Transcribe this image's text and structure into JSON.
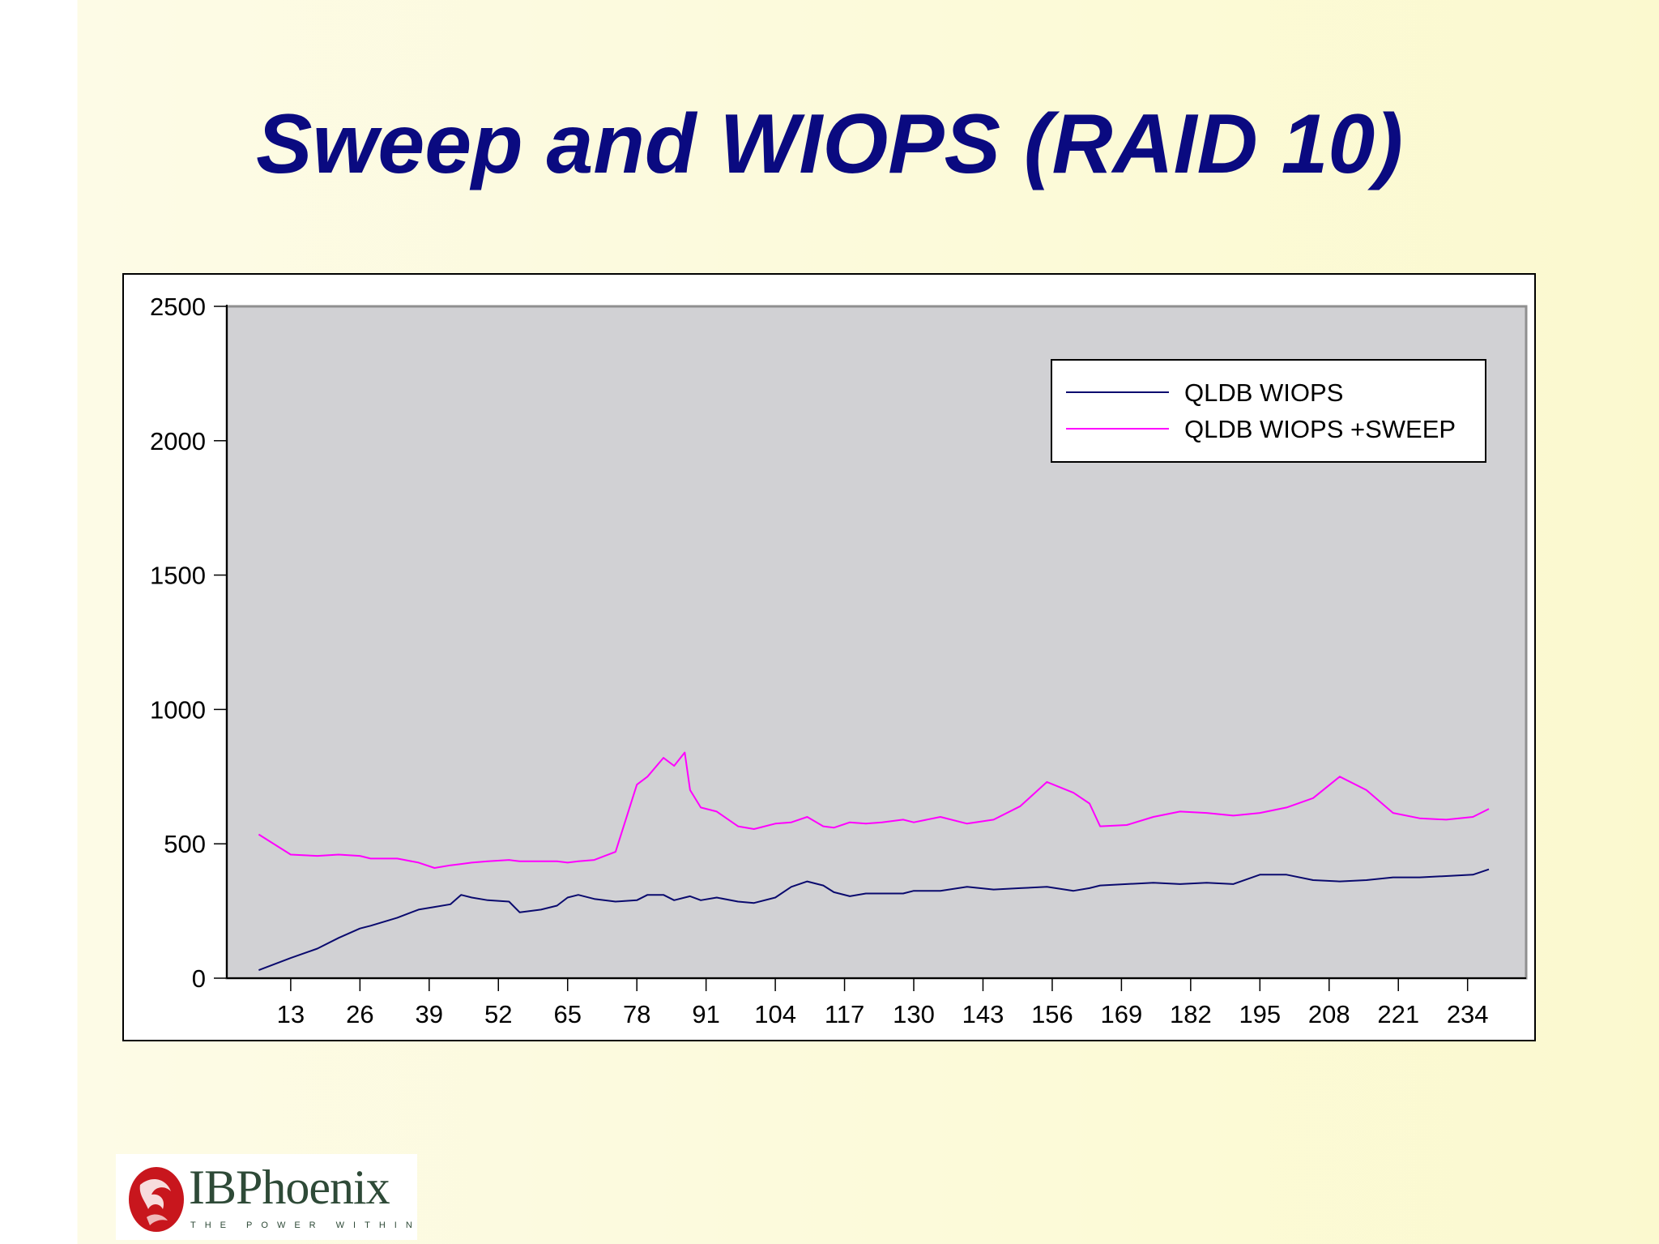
{
  "slide": {
    "title": "Sweep and WIOPS (RAID 10)",
    "logo_name": "IBPhoenix",
    "logo_tagline": "THE POWER WITHIN"
  },
  "colors": {
    "title": "#0a0a80",
    "plot_background": "#d1d1d4",
    "series_qldb_wiops": "#0a0a6e",
    "series_qldb_wiops_sweep": "#ff00ff"
  },
  "chart_data": {
    "type": "line",
    "title": "",
    "xlabel": "",
    "ylabel": "",
    "xlim": [
      1,
      245
    ],
    "ylim": [
      0,
      2500
    ],
    "y_ticks": [
      0,
      500,
      1000,
      1500,
      2000,
      2500
    ],
    "x_ticks": [
      13,
      26,
      39,
      52,
      65,
      78,
      91,
      104,
      117,
      130,
      143,
      156,
      169,
      182,
      195,
      208,
      221,
      234
    ],
    "grid": false,
    "legend_position": "top-right",
    "x": [
      7,
      13,
      18,
      22,
      26,
      28,
      33,
      37,
      40,
      43,
      45,
      47,
      50,
      54,
      56,
      60,
      63,
      65,
      67,
      70,
      74,
      78,
      80,
      83,
      85,
      87,
      88,
      90,
      93,
      97,
      100,
      104,
      107,
      110,
      113,
      115,
      118,
      121,
      124,
      128,
      130,
      135,
      140,
      145,
      150,
      155,
      160,
      163,
      165,
      170,
      175,
      180,
      185,
      190,
      195,
      200,
      205,
      210,
      215,
      220,
      225,
      230,
      235,
      238
    ],
    "series": [
      {
        "name": "QLDB WIOPS",
        "values": [
          30,
          75,
          110,
          150,
          185,
          195,
          225,
          255,
          265,
          275,
          310,
          300,
          290,
          285,
          245,
          255,
          270,
          300,
          310,
          295,
          285,
          290,
          310,
          310,
          290,
          300,
          305,
          290,
          300,
          285,
          280,
          300,
          340,
          360,
          345,
          320,
          305,
          315,
          315,
          315,
          325,
          325,
          340,
          330,
          335,
          340,
          325,
          335,
          345,
          350,
          355,
          350,
          355,
          350,
          385,
          385,
          365,
          360,
          365,
          375,
          375,
          380,
          385,
          405
        ]
      },
      {
        "name": "QLDB WIOPS +SWEEP",
        "values": [
          535,
          460,
          455,
          460,
          455,
          445,
          445,
          430,
          410,
          420,
          425,
          430,
          435,
          440,
          435,
          435,
          435,
          430,
          435,
          440,
          470,
          720,
          750,
          820,
          790,
          840,
          700,
          635,
          620,
          565,
          555,
          575,
          580,
          600,
          565,
          560,
          580,
          575,
          580,
          590,
          580,
          600,
          575,
          590,
          640,
          730,
          690,
          650,
          565,
          570,
          600,
          620,
          615,
          605,
          615,
          635,
          670,
          750,
          700,
          615,
          595,
          590,
          600,
          630
        ]
      }
    ]
  }
}
